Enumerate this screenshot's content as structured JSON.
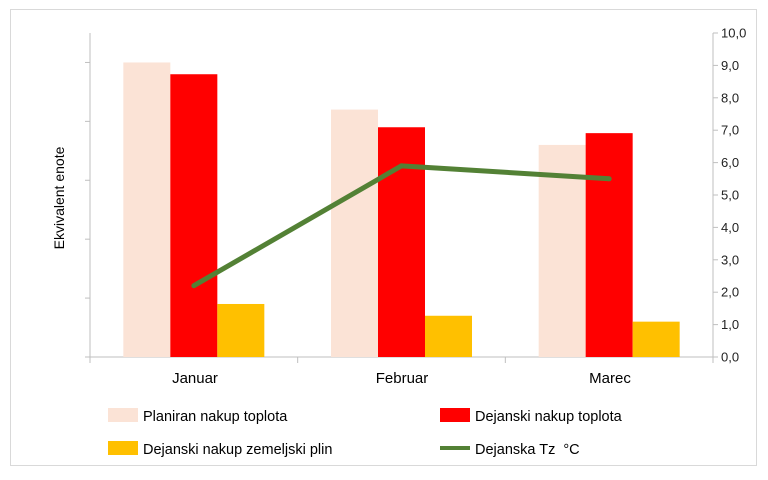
{
  "chart_data": {
    "type": "bar",
    "categories": [
      "Januar",
      "Februar",
      "Marec"
    ],
    "ylabel": "Ekvivalent enote",
    "y2ticks": [
      "0,0",
      "1,0",
      "2,0",
      "3,0",
      "4,0",
      "5,0",
      "6,0",
      "7,0",
      "8,0",
      "9,0",
      "10,0"
    ],
    "y2lim": [
      0,
      10
    ],
    "legend_position": "bottom",
    "grid": false,
    "series": [
      {
        "name": "Planiran nakup toplota",
        "type": "bar",
        "axis": "left",
        "color": "#fbe3d6",
        "values": [
          5.0,
          4.2,
          3.6
        ]
      },
      {
        "name": "Dejanski nakup toplota",
        "type": "bar",
        "axis": "left",
        "color": "#ff0000",
        "values": [
          4.8,
          3.9,
          3.8
        ]
      },
      {
        "name": "Dejanski nakup zemeljski plin",
        "type": "bar",
        "axis": "left",
        "color": "#ffc000",
        "values": [
          0.9,
          0.7,
          0.6
        ]
      },
      {
        "name": "Dejanska Tz  °C",
        "type": "line",
        "axis": "right",
        "color": "#538135",
        "values": [
          2.2,
          5.9,
          5.5
        ]
      }
    ]
  }
}
